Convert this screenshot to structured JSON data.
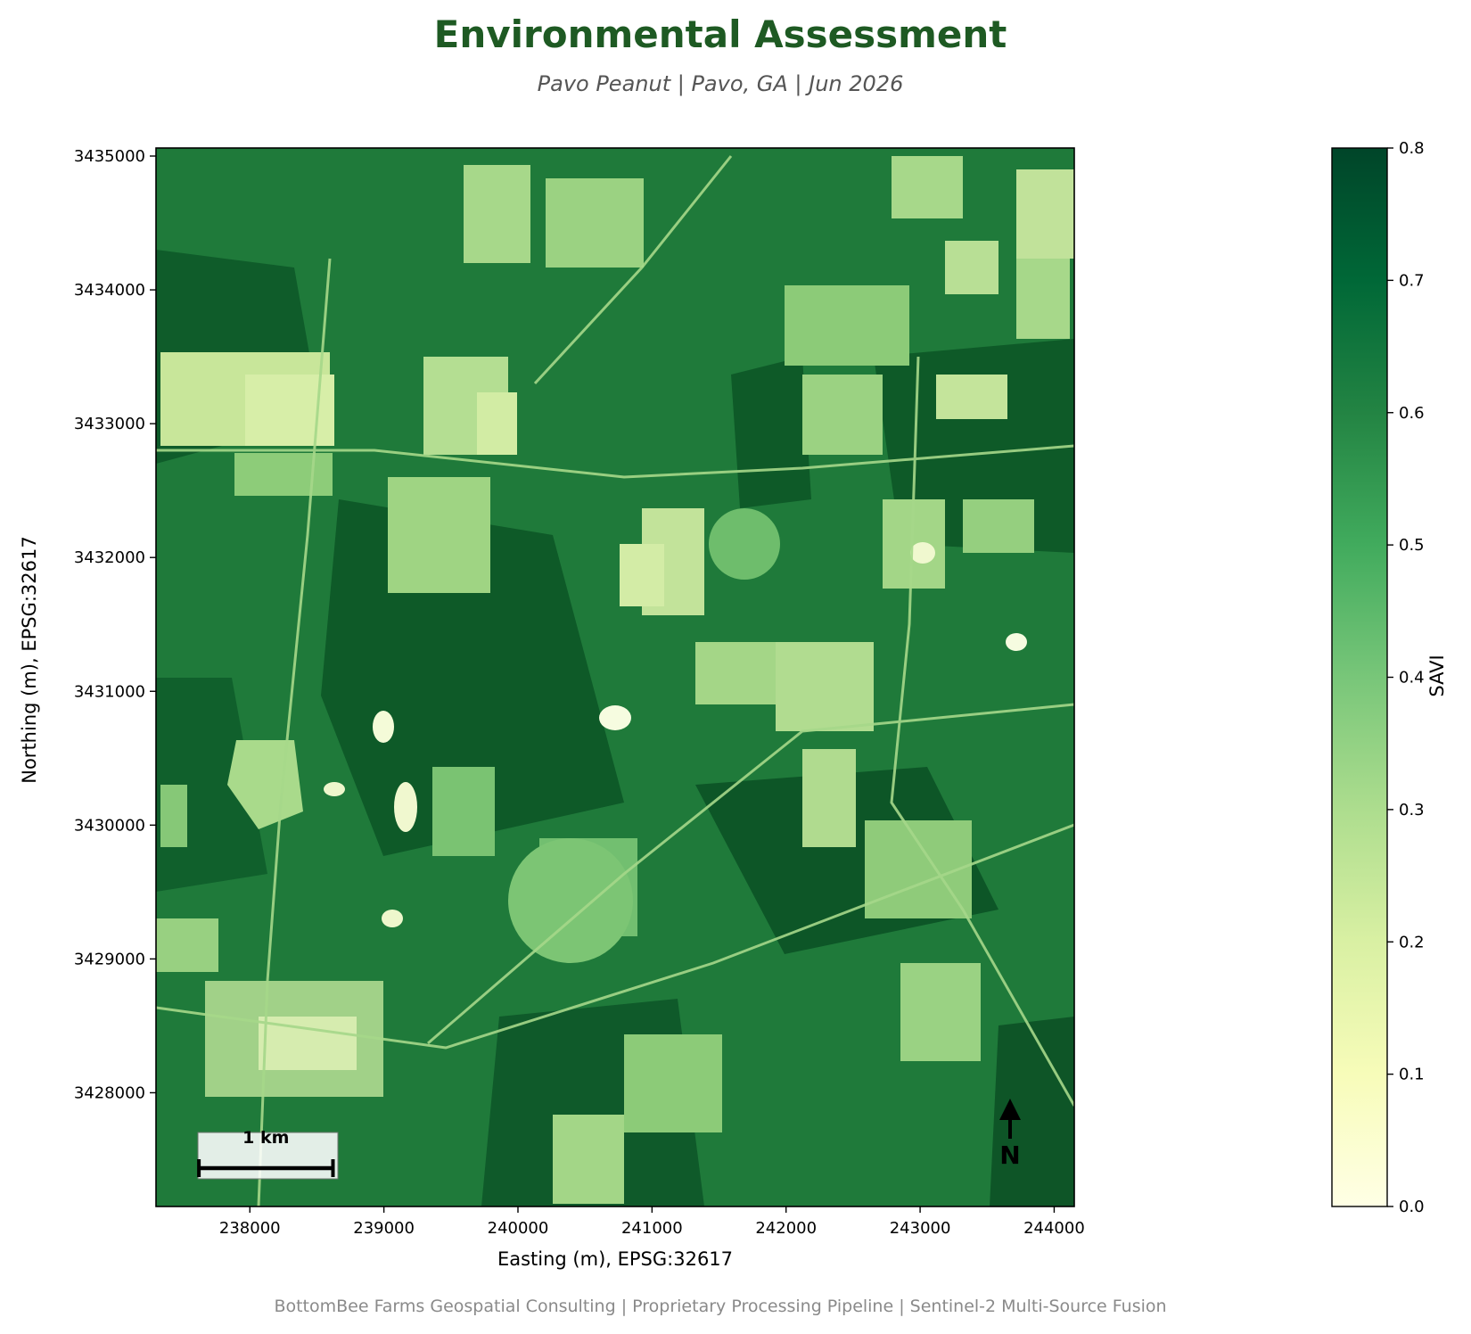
{
  "header": {
    "title": "Environmental Assessment",
    "subtitle": "Pavo Peanut  |  Pavo, GA  |  Jun 2026"
  },
  "footer": {
    "text": "BottomBee Farms Geospatial Consulting  |  Proprietary Processing Pipeline  |  Sentinel-2 Multi-Source Fusion"
  },
  "map": {
    "x_axis": {
      "label": "Easting (m), EPSG:32617",
      "range": [
        237300,
        244150
      ],
      "ticks": [
        {
          "value": 238000,
          "label": "238000"
        },
        {
          "value": 239000,
          "label": "239000"
        },
        {
          "value": 240000,
          "label": "240000"
        },
        {
          "value": 241000,
          "label": "241000"
        },
        {
          "value": 242000,
          "label": "242000"
        },
        {
          "value": 243000,
          "label": "243000"
        },
        {
          "value": 244000,
          "label": "244000"
        }
      ]
    },
    "y_axis": {
      "label": "Northing (m), EPSG:32617",
      "range": [
        3427150,
        3435060
      ],
      "ticks": [
        {
          "value": 3428000,
          "label": "3428000"
        },
        {
          "value": 3429000,
          "label": "3429000"
        },
        {
          "value": 3430000,
          "label": "3430000"
        },
        {
          "value": 3431000,
          "label": "3431000"
        },
        {
          "value": 3432000,
          "label": "3432000"
        },
        {
          "value": 3433000,
          "label": "3433000"
        },
        {
          "value": 3434000,
          "label": "3434000"
        },
        {
          "value": 3435000,
          "label": "3435000"
        }
      ]
    },
    "scale_bar": {
      "label": "1 km",
      "length_m": 1000,
      "start_easting": 237620
    },
    "north_arrow": {
      "label": "N"
    },
    "raster": {
      "variable": "SAVI",
      "colormap": "YlGn"
    }
  },
  "colorbar": {
    "label": "SAVI",
    "range": [
      0.0,
      0.8
    ],
    "ticks": [
      {
        "value": 0.0,
        "label": "0.0"
      },
      {
        "value": 0.1,
        "label": "0.1"
      },
      {
        "value": 0.2,
        "label": "0.2"
      },
      {
        "value": 0.3,
        "label": "0.3"
      },
      {
        "value": 0.4,
        "label": "0.4"
      },
      {
        "value": 0.5,
        "label": "0.5"
      },
      {
        "value": 0.6,
        "label": "0.6"
      },
      {
        "value": 0.7,
        "label": "0.7"
      },
      {
        "value": 0.8,
        "label": "0.8"
      }
    ],
    "colors": [
      "#ffffe5",
      "#f7fcb9",
      "#d9f0a3",
      "#addd8e",
      "#78c679",
      "#41ab5d",
      "#238443",
      "#006837",
      "#004529"
    ]
  }
}
